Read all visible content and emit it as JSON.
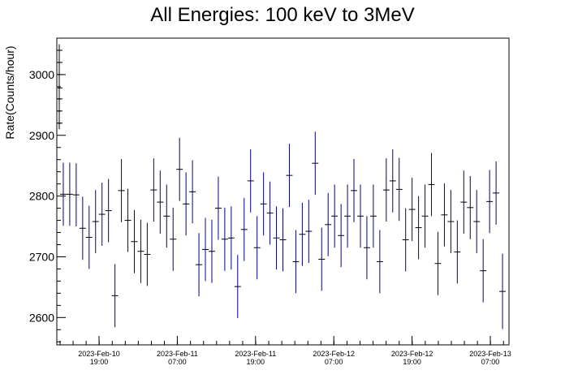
{
  "chart_data": {
    "type": "scatter",
    "title": "All Energies:  100 keV to 3MeV",
    "ylabel": "Rate(Counts/hour)",
    "xlabel": "",
    "ylim": [
      2555,
      3060
    ],
    "y_ticks": [
      2600,
      2700,
      2800,
      2900,
      3000
    ],
    "x_ticks": [
      {
        "line1": "2023-Feb-10",
        "line2": "19:00"
      },
      {
        "line1": "2023-Feb-11",
        "line2": "07:00"
      },
      {
        "line1": "2023-Feb-11",
        "line2": "19:00"
      },
      {
        "line1": "2023-Feb-12",
        "line2": "07:00"
      },
      {
        "line1": "2023-Feb-12",
        "line2": "19:00"
      },
      {
        "line1": "2023-Feb-13",
        "line2": "07:00"
      }
    ],
    "grid": false,
    "error_bar_color": "#000080",
    "first_points_color": "#000000",
    "series": [
      {
        "values": [
          2803,
          2803,
          2802,
          2747,
          2732,
          2758,
          2770,
          2776,
          2636,
          2809,
          2760,
          2725,
          2709,
          2704,
          2810,
          2790,
          2767,
          2729,
          2844,
          2787,
          2807,
          2687,
          2712,
          2709,
          2780,
          2729,
          2731,
          2651,
          2745,
          2825,
          2715,
          2787,
          2772,
          2731,
          2728,
          2834,
          2692,
          2737,
          2742,
          2854,
          2696,
          2753,
          2767,
          2735,
          2767,
          2809,
          2767,
          2715,
          2767,
          2692,
          2810,
          2825,
          2811,
          2728,
          2778,
          2748,
          2767,
          2819,
          2689,
          2769,
          2758,
          2708,
          2790,
          2781,
          2758,
          2677,
          2791,
          2805,
          2643
        ],
        "errors": [
          52,
          52,
          52,
          52,
          52,
          52,
          52,
          52,
          52,
          52,
          52,
          52,
          52,
          52,
          52,
          52,
          52,
          52,
          52,
          52,
          52,
          52,
          52,
          52,
          52,
          52,
          52,
          52,
          52,
          52,
          52,
          52,
          52,
          52,
          52,
          52,
          52,
          52,
          52,
          52,
          52,
          52,
          52,
          52,
          52,
          52,
          52,
          52,
          52,
          52,
          52,
          52,
          52,
          52,
          52,
          52,
          52,
          52,
          52,
          52,
          52,
          52,
          52,
          52,
          52,
          52,
          52,
          52,
          62
        ]
      }
    ],
    "first_points": [
      3040,
      3020,
      3000,
      2978,
      2960,
      2940,
      2920
    ]
  }
}
